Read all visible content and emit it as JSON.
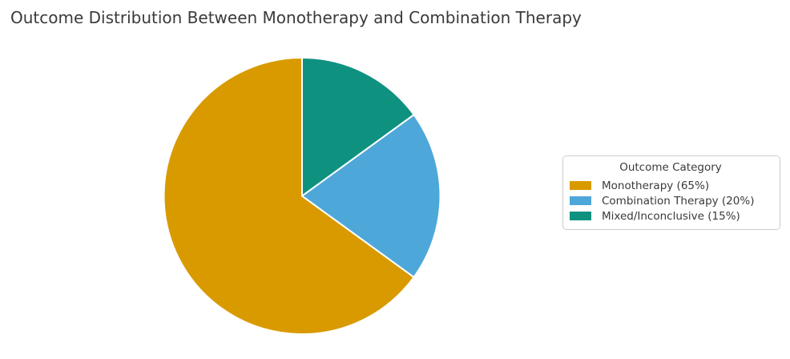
{
  "title": {
    "text": "Outcome Distribution Between Monotherapy and Combination Therapy",
    "color": "#3a3a3a"
  },
  "legend": {
    "title": "Outcome Category",
    "items": [
      {
        "label": "Monotherapy (65%)",
        "color": "#d99a00"
      },
      {
        "label": "Combination Therapy (20%)",
        "color": "#4ea7d9"
      },
      {
        "label": "Mixed/Inconclusive (15%)",
        "color": "#0f9180"
      }
    ]
  },
  "chart_data": {
    "type": "pie",
    "title": "Outcome Distribution Between Monotherapy and Combination Therapy",
    "categories": [
      "Monotherapy",
      "Combination Therapy",
      "Mixed/Inconclusive"
    ],
    "values": [
      65,
      20,
      15
    ],
    "unit": "%",
    "colors": [
      "#d99a00",
      "#4ea7d9",
      "#0f9180"
    ],
    "start_angle": 90,
    "direction": "counterclockwise",
    "wedge_edge_color": "#ffffff",
    "wedge_edge_width": 2,
    "legend_title": "Outcome Category",
    "legend_position": "right",
    "labels_on_slices": false
  }
}
